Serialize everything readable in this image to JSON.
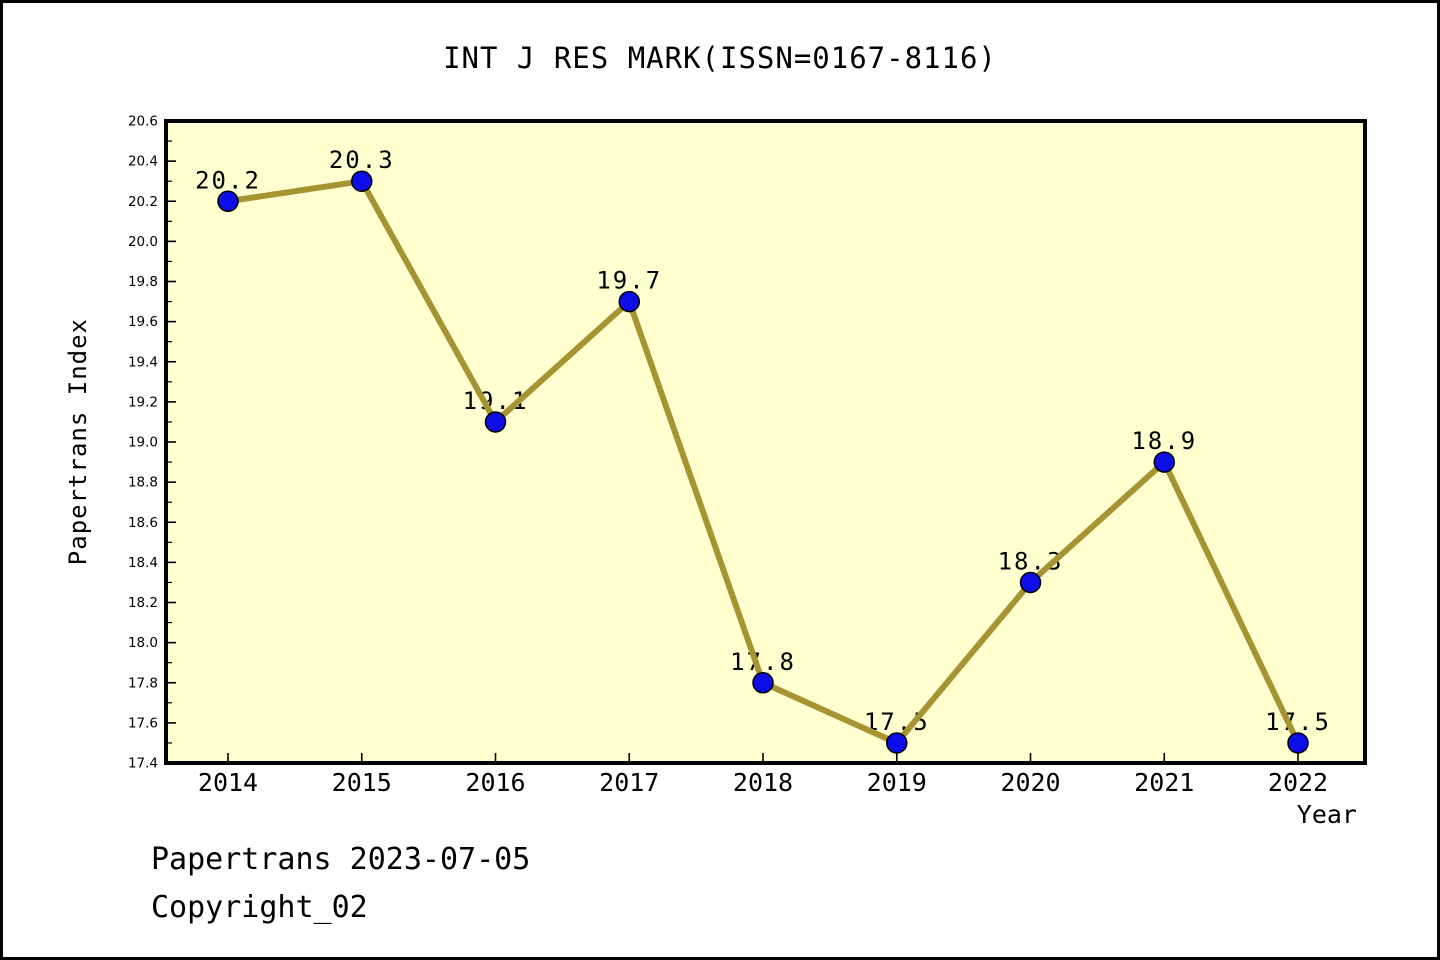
{
  "page": {
    "footer_line1": "Papertrans 2023-07-05",
    "footer_line2": "Copyright_02"
  },
  "chart_data": {
    "type": "line",
    "title": "INT J RES MARK(ISSN=0167-8116)",
    "xlabel": "Year",
    "ylabel": "Papertrans Index",
    "categories": [
      2014,
      2015,
      2016,
      2017,
      2018,
      2019,
      2020,
      2021,
      2022
    ],
    "values": [
      20.2,
      20.3,
      19.1,
      19.7,
      17.8,
      17.5,
      18.3,
      18.9,
      17.5
    ],
    "point_labels": [
      "20.2",
      "20.3",
      "19.1",
      "19.7",
      "17.8",
      "17.5",
      "18.3",
      "18.9",
      "17.5"
    ],
    "ylim": [
      17.4,
      20.6
    ],
    "ytick_major_step": 0.2,
    "ytick_minor_step": 0.1,
    "grid": false,
    "legend": "none",
    "colors": {
      "plot_bg": "#FFFFCF",
      "line": "#A69433",
      "marker": "#0D0DE8",
      "marker_edge": "#000000",
      "frame": "#000000",
      "text": "#000000"
    }
  }
}
